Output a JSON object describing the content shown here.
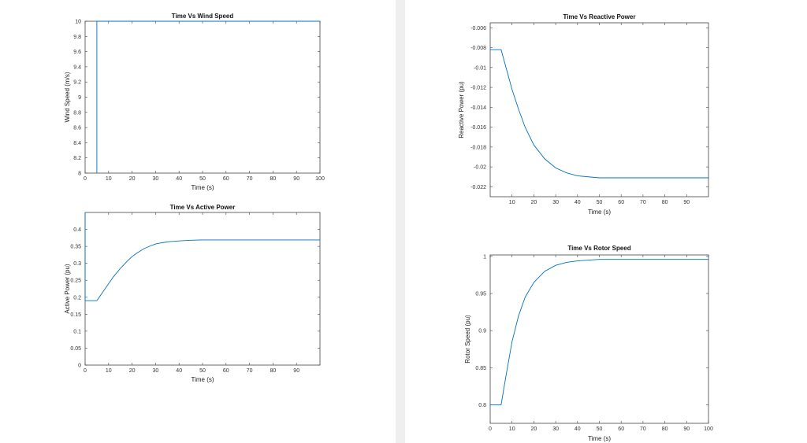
{
  "chart_data": [
    {
      "id": "wind",
      "type": "line",
      "title": "Time Vs Wind Speed",
      "xlabel": "Time (s)",
      "ylabel": "Wind Speed (m/s)",
      "xlim": [
        0,
        100
      ],
      "ylim": [
        8,
        10
      ],
      "xticks": [
        0,
        10,
        20,
        30,
        40,
        50,
        60,
        70,
        80,
        90,
        100
      ],
      "yticks": [
        8,
        8.2,
        8.4,
        8.6,
        8.8,
        9,
        9.2,
        9.4,
        9.6,
        9.8,
        10
      ],
      "xtick_labels": [
        "0",
        "10",
        "20",
        "30",
        "40",
        "50",
        "60",
        "70",
        "80",
        "90",
        "100"
      ],
      "ytick_labels": [
        "8",
        "8.2",
        "8.4",
        "8.6",
        "8.8",
        "9",
        "9.2",
        "9.4",
        "9.6",
        "9.8",
        "10"
      ],
      "grid": false,
      "series": [
        {
          "color": "#0072bd",
          "x": [
            5,
            5,
            100
          ],
          "y": [
            8,
            10,
            10
          ]
        }
      ]
    },
    {
      "id": "active",
      "type": "line",
      "title": "Time Vs Active Power",
      "xlabel": "Time (s)",
      "ylabel": "Active Power (pu)",
      "xlim": [
        0,
        100
      ],
      "ylim": [
        0,
        0.45
      ],
      "xticks": [
        0,
        10,
        20,
        30,
        40,
        50,
        60,
        70,
        80,
        90
      ],
      "yticks": [
        0,
        0.05,
        0.1,
        0.15,
        0.2,
        0.25,
        0.3,
        0.35,
        0.4
      ],
      "xtick_labels": [
        "0",
        "10",
        "20",
        "30",
        "40",
        "50",
        "60",
        "70",
        "80",
        "90"
      ],
      "ytick_labels": [
        "0",
        "0.05",
        "0.1",
        "0.15",
        "0.2",
        "0.25",
        "0.3",
        "0.35",
        "0.4"
      ],
      "grid": false,
      "series": [
        {
          "color": "#0072bd",
          "x": [
            0,
            0,
            0.5,
            2,
            5,
            6,
            8,
            10,
            12,
            15,
            18,
            20,
            22,
            25,
            28,
            30,
            33,
            36,
            40,
            45,
            50,
            55,
            60,
            70,
            80,
            90,
            100
          ],
          "y": [
            0.45,
            0.19,
            0.19,
            0.19,
            0.19,
            0.2,
            0.22,
            0.24,
            0.26,
            0.285,
            0.307,
            0.32,
            0.33,
            0.343,
            0.352,
            0.357,
            0.361,
            0.364,
            0.366,
            0.368,
            0.369,
            0.369,
            0.369,
            0.369,
            0.369,
            0.369,
            0.369
          ]
        }
      ]
    },
    {
      "id": "reactive",
      "type": "line",
      "title": "Time Vs Reactive Power",
      "xlabel": "Time (s)",
      "ylabel": "Reactive Power (pu)",
      "xlim": [
        0,
        100
      ],
      "ylim": [
        -0.023,
        -0.0055
      ],
      "xticks": [
        10,
        20,
        30,
        40,
        50,
        60,
        70,
        80,
        90
      ],
      "yticks": [
        -0.006,
        -0.008,
        -0.01,
        -0.012,
        -0.014,
        -0.016,
        -0.018,
        -0.02,
        -0.022
      ],
      "xtick_labels": [
        "10",
        "20",
        "30",
        "40",
        "50",
        "60",
        "70",
        "80",
        "90"
      ],
      "ytick_labels": [
        "-0.006",
        "-0.008",
        "-0.01",
        "-0.012",
        "-0.014",
        "-0.016",
        "-0.018",
        "-0.02",
        "-0.022"
      ],
      "grid": false,
      "series": [
        {
          "color": "#0072bd",
          "x": [
            0,
            5,
            7,
            10,
            13,
            16,
            20,
            25,
            30,
            35,
            40,
            45,
            50,
            55,
            60,
            70,
            80,
            90,
            100
          ],
          "y": [
            -0.0082,
            -0.0082,
            -0.0098,
            -0.0122,
            -0.0142,
            -0.016,
            -0.0178,
            -0.0192,
            -0.0201,
            -0.0206,
            -0.0209,
            -0.021,
            -0.0211,
            -0.0211,
            -0.0211,
            -0.0211,
            -0.0211,
            -0.0211,
            -0.0211
          ]
        }
      ]
    },
    {
      "id": "rotor",
      "type": "line",
      "title": "Time Vs Rotor Speed",
      "xlabel": "Time (s)",
      "ylabel": "Rotor Speed (pu)",
      "xlim": [
        0,
        100
      ],
      "ylim": [
        0.775,
        1.002
      ],
      "xticks": [
        0,
        10,
        20,
        30,
        40,
        50,
        60,
        70,
        80,
        90,
        100
      ],
      "yticks": [
        0.8,
        0.85,
        0.9,
        0.95,
        1
      ],
      "xtick_labels": [
        "0",
        "10",
        "20",
        "30",
        "40",
        "50",
        "60",
        "70",
        "80",
        "90",
        "100"
      ],
      "ytick_labels": [
        "0.8",
        "0.85",
        "0.9",
        "0.95",
        "1"
      ],
      "grid": false,
      "series": [
        {
          "color": "#0072bd",
          "x": [
            0,
            5,
            7,
            10,
            13,
            16,
            20,
            25,
            30,
            35,
            40,
            45,
            50,
            55,
            60,
            70,
            80,
            90,
            100
          ],
          "y": [
            0.8,
            0.8,
            0.835,
            0.885,
            0.92,
            0.945,
            0.965,
            0.98,
            0.988,
            0.992,
            0.994,
            0.995,
            0.996,
            0.996,
            0.996,
            0.996,
            0.996,
            0.996,
            0.996
          ]
        }
      ]
    }
  ]
}
